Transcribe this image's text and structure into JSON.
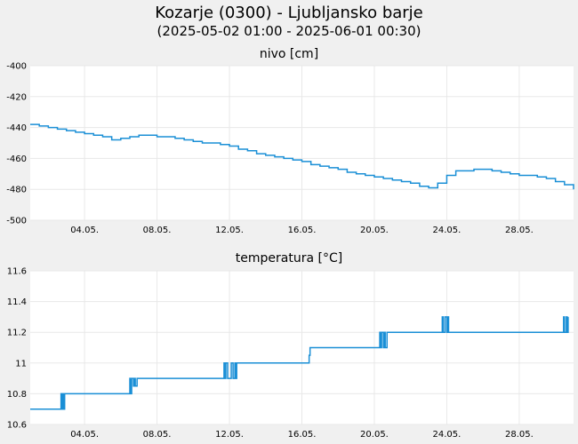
{
  "header": {
    "title": "Kozarje (0300) - Ljubljansko barje",
    "subtitle": "(2025-05-02 01:00 - 2025-06-01 00:30)"
  },
  "colors": {
    "background": "#f0f0f0",
    "plot_background": "#ffffff",
    "grid": "#e8e8e8",
    "series": "#1a8fd6"
  },
  "chart_data": [
    {
      "type": "line",
      "title": "nivo [cm]",
      "xlabel": "",
      "ylabel": "",
      "xlim": [
        1.0,
        31.0
      ],
      "ylim": [
        -500,
        -400
      ],
      "y_ticks": [
        -400,
        -420,
        -440,
        -460,
        -480,
        -500
      ],
      "x_ticks": [
        {
          "x": 4,
          "label": "04.05."
        },
        {
          "x": 8,
          "label": "08.05."
        },
        {
          "x": 12,
          "label": "12.05."
        },
        {
          "x": 16,
          "label": "16.05."
        },
        {
          "x": 20,
          "label": "20.05."
        },
        {
          "x": 24,
          "label": "24.05."
        },
        {
          "x": 28,
          "label": "28.05."
        }
      ],
      "grid": true,
      "series": [
        {
          "x": [
            1.0,
            1.5,
            2.0,
            2.5,
            3.0,
            3.5,
            4.0,
            4.5,
            5.0,
            5.5,
            6.0,
            6.5,
            7.0,
            7.5,
            8.0,
            8.5,
            9.0,
            9.5,
            10.0,
            10.5,
            11.0,
            11.5,
            12.0,
            12.5,
            13.0,
            13.5,
            14.0,
            14.5,
            15.0,
            15.5,
            16.0,
            16.5,
            17.0,
            17.5,
            18.0,
            18.5,
            19.0,
            19.5,
            20.0,
            20.5,
            21.0,
            21.5,
            22.0,
            22.5,
            23.0,
            23.5,
            24.0,
            24.5,
            25.0,
            25.5,
            26.0,
            26.5,
            27.0,
            27.5,
            28.0,
            28.5,
            29.0,
            29.5,
            30.0,
            30.5,
            31.0
          ],
          "y": [
            -438,
            -439,
            -440,
            -441,
            -442,
            -443,
            -444,
            -445,
            -446,
            -448,
            -447,
            -446,
            -445,
            -445,
            -446,
            -446,
            -447,
            -448,
            -449,
            -450,
            -450,
            -451,
            -452,
            -454,
            -455,
            -457,
            -458,
            -459,
            -460,
            -461,
            -462,
            -464,
            -465,
            -466,
            -467,
            -469,
            -470,
            -471,
            -472,
            -473,
            -474,
            -475,
            -476,
            -478,
            -479,
            -476,
            -471,
            -468,
            -468,
            -467,
            -467,
            -468,
            -469,
            -470,
            -471,
            -471,
            -472,
            -473,
            -475,
            -477,
            -480
          ]
        }
      ]
    },
    {
      "type": "line",
      "title": "temperatura [°C]",
      "xlabel": "",
      "ylabel": "",
      "xlim": [
        1.0,
        31.0
      ],
      "ylim": [
        10.6,
        11.6
      ],
      "y_ticks": [
        11.6,
        11.4,
        11.2,
        11,
        10.8,
        10.6
      ],
      "x_ticks": [
        {
          "x": 4,
          "label": "04.05."
        },
        {
          "x": 8,
          "label": "08.05."
        },
        {
          "x": 12,
          "label": "12.05."
        },
        {
          "x": 16,
          "label": "16.05."
        },
        {
          "x": 20,
          "label": "20.05."
        },
        {
          "x": 24,
          "label": "24.05."
        },
        {
          "x": 28,
          "label": "28.05."
        }
      ],
      "grid": true,
      "series": [
        {
          "x": [
            1.0,
            2.5,
            2.7,
            2.75,
            2.8,
            2.85,
            2.9,
            3.0,
            3.1,
            3.3,
            6.3,
            6.5,
            6.55,
            6.6,
            6.7,
            6.75,
            6.8,
            6.9,
            7.0,
            7.1,
            11.6,
            11.7,
            11.75,
            11.8,
            11.9,
            12.0,
            12.1,
            12.2,
            12.3,
            12.35,
            12.4,
            12.5,
            16.3,
            16.4,
            16.45,
            16.5,
            20.2,
            20.3,
            20.35,
            20.4,
            20.5,
            20.55,
            20.6,
            20.7,
            20.8,
            23.7,
            23.75,
            23.8,
            23.9,
            24.0,
            24.05,
            24.1,
            30.4,
            30.45,
            30.5,
            30.6,
            30.65,
            30.7
          ],
          "y": [
            10.7,
            10.7,
            10.8,
            10.7,
            10.8,
            10.7,
            10.8,
            10.8,
            10.8,
            10.8,
            10.8,
            10.9,
            10.8,
            10.9,
            10.85,
            10.9,
            10.85,
            10.9,
            10.9,
            10.9,
            10.9,
            11.0,
            10.9,
            11.0,
            10.9,
            10.9,
            11.0,
            10.9,
            11.0,
            10.9,
            11.0,
            11.0,
            11.0,
            11.05,
            11.1,
            11.1,
            11.1,
            11.2,
            11.1,
            11.2,
            11.1,
            11.2,
            11.1,
            11.2,
            11.2,
            11.2,
            11.3,
            11.2,
            11.3,
            11.2,
            11.3,
            11.2,
            11.2,
            11.3,
            11.2,
            11.3,
            11.2,
            11.3
          ]
        }
      ]
    }
  ]
}
